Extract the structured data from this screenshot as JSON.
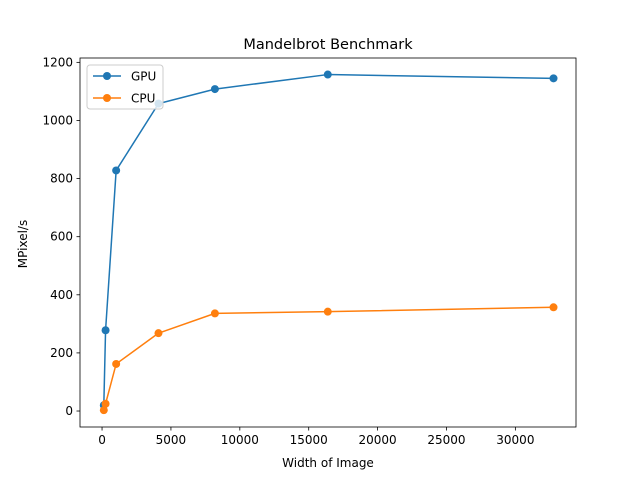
{
  "chart_data": {
    "type": "line",
    "title": "Mandelbrot Benchmark",
    "xlabel": "Width of Image",
    "ylabel": "MPixel/s",
    "xlim": [
      -1600,
      34400
    ],
    "ylim": [
      -55,
      1215
    ],
    "xticks": [
      0,
      5000,
      10000,
      15000,
      20000,
      25000,
      30000
    ],
    "yticks": [
      0,
      200,
      400,
      600,
      800,
      1000,
      1200
    ],
    "grid": false,
    "legend_position": "upper-left",
    "series": [
      {
        "name": "GPU",
        "color": "#1f77b4",
        "x": [
          128,
          256,
          1024,
          4096,
          8192,
          16384,
          32768
        ],
        "y": [
          20,
          278,
          828,
          1058,
          1108,
          1158,
          1145
        ]
      },
      {
        "name": "CPU",
        "color": "#ff7f0e",
        "x": [
          128,
          256,
          1024,
          4096,
          8192,
          16384,
          32768
        ],
        "y": [
          3,
          25,
          162,
          268,
          336,
          342,
          357
        ]
      }
    ]
  }
}
